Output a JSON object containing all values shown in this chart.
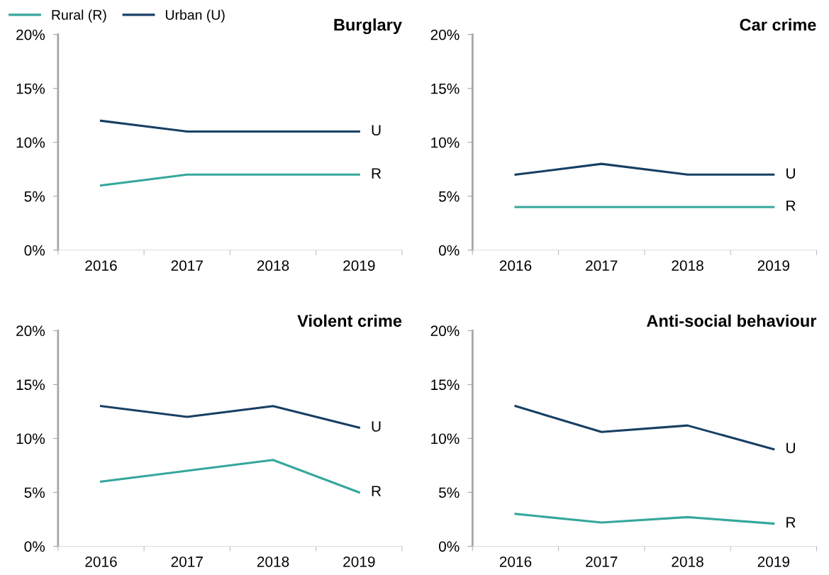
{
  "chart_data": [
    {
      "type": "line",
      "title": "Burglary",
      "categories": [
        "2016",
        "2017",
        "2018",
        "2019"
      ],
      "legend": "top left",
      "grid": false,
      "series": [
        {
          "name": "Rural (R)",
          "color": "#35a79c",
          "values": [
            6,
            7,
            7,
            7
          ]
        },
        {
          "name": "Urban (U)",
          "color": "#173f63",
          "values": [
            12,
            11,
            11,
            11
          ]
        }
      ],
      "ylim": [
        0,
        20
      ],
      "yticks": [
        {
          "value": 0,
          "label": "0%"
        },
        {
          "value": 5,
          "label": "5%"
        },
        {
          "value": 10,
          "label": "10%"
        },
        {
          "value": 15,
          "label": "15%"
        },
        {
          "value": 20,
          "label": "20%"
        }
      ],
      "annotations": [
        {
          "text": "U",
          "x": "2019",
          "y": 11
        },
        {
          "text": "R",
          "x": "2019",
          "y": 7
        }
      ]
    },
    {
      "type": "line",
      "title": "Car crime",
      "categories": [
        "2016",
        "2017",
        "2018",
        "2019"
      ],
      "grid": false,
      "series": [
        {
          "color": "#35a79c",
          "values": [
            4,
            4,
            4,
            4
          ]
        },
        {
          "color": "#173f63",
          "values": [
            7,
            8,
            7,
            7
          ]
        }
      ],
      "ylim": [
        0,
        20
      ],
      "yticks": [
        {
          "value": 0,
          "label": "0%"
        },
        {
          "value": 5,
          "label": "5%"
        },
        {
          "value": 10,
          "label": "10%"
        },
        {
          "value": 15,
          "label": "15%"
        },
        {
          "value": 20,
          "label": "20%"
        }
      ],
      "annotations": [
        {
          "text": "U",
          "x": "2019",
          "y": 7
        },
        {
          "text": "R",
          "x": "2019",
          "y": 4
        }
      ]
    },
    {
      "type": "line",
      "title": "Violent crime",
      "categories": [
        "2016",
        "2017",
        "2018",
        "2019"
      ],
      "grid": false,
      "series": [
        {
          "color": "#35a79c",
          "values": [
            6,
            7,
            8,
            5
          ]
        },
        {
          "color": "#173f63",
          "values": [
            13,
            12,
            13,
            11
          ]
        }
      ],
      "ylim": [
        0,
        20
      ],
      "yticks": [
        {
          "value": 0,
          "label": "0%"
        },
        {
          "value": 5,
          "label": "5%"
        },
        {
          "value": 10,
          "label": "10%"
        },
        {
          "value": 15,
          "label": "15%"
        },
        {
          "value": 20,
          "label": "20%"
        }
      ],
      "annotations": [
        {
          "text": "U",
          "x": "2019",
          "y": 11
        },
        {
          "text": "R",
          "x": "2019",
          "y": 5
        }
      ]
    },
    {
      "type": "line",
      "title": "Anti-social behaviour",
      "categories": [
        "2016",
        "2017",
        "2018",
        "2019"
      ],
      "grid": false,
      "series": [
        {
          "color": "#35a79c",
          "values": [
            3,
            2.2,
            2.7,
            2.1
          ]
        },
        {
          "color": "#173f63",
          "values": [
            13,
            10.6,
            11.2,
            9
          ]
        }
      ],
      "ylim": [
        0,
        20
      ],
      "yticks": [
        {
          "value": 0,
          "label": "0%"
        },
        {
          "value": 5,
          "label": "5%"
        },
        {
          "value": 10,
          "label": "10%"
        },
        {
          "value": 15,
          "label": "15%"
        },
        {
          "value": 20,
          "label": "20%"
        }
      ],
      "annotations": [
        {
          "text": "U",
          "x": "2019",
          "y": 9
        },
        {
          "text": "R",
          "x": "2019",
          "y": 2.1
        }
      ]
    }
  ]
}
